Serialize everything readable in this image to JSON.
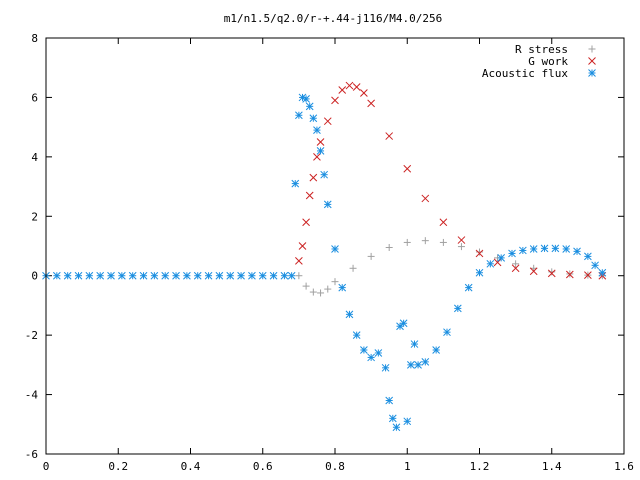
{
  "chart_data": {
    "type": "scatter",
    "title": "m1/n1.5/q2.0/r-+.44-j116/M4.0/256",
    "xlabel": "",
    "ylabel": "",
    "xlim": [
      0,
      1.6
    ],
    "ylim": [
      -6,
      8
    ],
    "xticks": [
      "0",
      "0.2",
      "0.4",
      "0.6",
      "0.8",
      "1",
      "1.2",
      "1.4",
      "1.6"
    ],
    "yticks": [
      "-6",
      "-4",
      "-2",
      "0",
      "2",
      "4",
      "6",
      "8"
    ],
    "grid": false,
    "legend_position": "top-right",
    "series": [
      {
        "name": "R stress",
        "marker": "plus",
        "color": "#a0a0a0",
        "x": [
          0.7,
          0.72,
          0.74,
          0.76,
          0.78,
          0.8,
          0.85,
          0.9,
          0.95,
          1.0,
          1.05,
          1.1,
          1.15,
          1.2,
          1.25,
          1.3,
          1.35,
          1.4,
          1.45,
          1.5,
          1.54
        ],
        "y": [
          0.0,
          -0.35,
          -0.55,
          -0.58,
          -0.45,
          -0.2,
          0.25,
          0.65,
          0.95,
          1.12,
          1.18,
          1.12,
          0.98,
          0.8,
          0.6,
          0.4,
          0.25,
          0.13,
          0.06,
          0.02,
          0.0
        ]
      },
      {
        "name": "G work",
        "marker": "cross",
        "color": "#cc2222",
        "x": [
          0.7,
          0.71,
          0.72,
          0.73,
          0.74,
          0.75,
          0.76,
          0.78,
          0.8,
          0.82,
          0.84,
          0.86,
          0.88,
          0.9,
          0.95,
          1.0,
          1.05,
          1.1,
          1.15,
          1.2,
          1.25,
          1.3,
          1.35,
          1.4,
          1.45,
          1.5,
          1.54
        ],
        "y": [
          0.5,
          1.0,
          1.8,
          2.7,
          3.3,
          4.0,
          4.5,
          5.2,
          5.9,
          6.25,
          6.4,
          6.35,
          6.15,
          5.8,
          4.7,
          3.6,
          2.6,
          1.8,
          1.2,
          0.75,
          0.45,
          0.25,
          0.15,
          0.08,
          0.04,
          0.02,
          0.0
        ]
      },
      {
        "name": "Acoustic flux",
        "marker": "star",
        "color": "#1a8ee0",
        "x": [
          0.0,
          0.03,
          0.06,
          0.09,
          0.12,
          0.15,
          0.18,
          0.21,
          0.24,
          0.27,
          0.3,
          0.33,
          0.36,
          0.39,
          0.42,
          0.45,
          0.48,
          0.51,
          0.54,
          0.57,
          0.6,
          0.63,
          0.66,
          0.68,
          0.69,
          0.7,
          0.71,
          0.72,
          0.73,
          0.74,
          0.75,
          0.76,
          0.77,
          0.78,
          0.8,
          0.82,
          0.84,
          0.86,
          0.88,
          0.9,
          0.92,
          0.94,
          0.95,
          0.96,
          0.97,
          0.98,
          0.99,
          1.0,
          1.01,
          1.02,
          1.03,
          1.05,
          1.08,
          1.11,
          1.14,
          1.17,
          1.2,
          1.23,
          1.26,
          1.29,
          1.32,
          1.35,
          1.38,
          1.41,
          1.44,
          1.47,
          1.5,
          1.52,
          1.54
        ],
        "y": [
          0.0,
          0.0,
          0.0,
          0.0,
          0.0,
          0.0,
          0.0,
          0.0,
          0.0,
          0.0,
          0.0,
          0.0,
          0.0,
          0.0,
          0.0,
          0.0,
          0.0,
          0.0,
          0.0,
          0.0,
          0.0,
          0.0,
          0.0,
          0.0,
          3.1,
          5.4,
          6.0,
          5.95,
          5.7,
          5.3,
          4.9,
          4.2,
          3.4,
          2.4,
          0.9,
          -0.4,
          -1.3,
          -2.0,
          -2.5,
          -2.75,
          -2.6,
          -3.1,
          -4.2,
          -4.8,
          -5.1,
          -1.7,
          -1.6,
          -4.9,
          -3.0,
          -2.3,
          -3.0,
          -2.9,
          -2.5,
          -1.9,
          -1.1,
          -0.4,
          0.1,
          0.4,
          0.6,
          0.75,
          0.85,
          0.9,
          0.92,
          0.92,
          0.9,
          0.82,
          0.65,
          0.35,
          0.1
        ]
      }
    ]
  }
}
